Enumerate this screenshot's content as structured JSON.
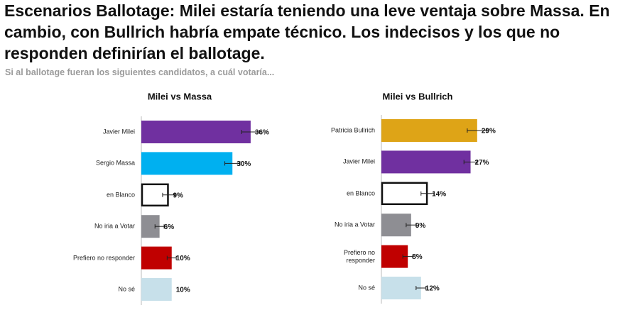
{
  "title": "Escenarios Ballotage: Milei estaría teniendo una leve ventaja sobre Massa. En cambio, con Bullrich habría empate técnico. Los indecisos y los que no responden definirían el ballotage.",
  "subtitle": "Si al ballotage fueran los siguientes candidatos, a cuál votaría...",
  "chart_data": [
    {
      "type": "bar",
      "orientation": "horizontal",
      "title": "Milei vs Massa",
      "categories": [
        "Javier Milei",
        "Sergio Massa",
        "en Blanco",
        "No iria a Votar",
        "Prefiero no responder",
        "No sé"
      ],
      "values": [
        36,
        30,
        9,
        6,
        10,
        10
      ],
      "errors": [
        3,
        2.5,
        2,
        1.5,
        1.5,
        0
      ],
      "value_labels": [
        "36%",
        "30%",
        "9%",
        "6%",
        "10%",
        "10%"
      ],
      "colors": [
        "#7030a0",
        "#00b0f0",
        "#ffffff",
        "#8e8e93",
        "#c00000",
        "#c7e0ea"
      ],
      "xlim": [
        0,
        40
      ]
    },
    {
      "type": "bar",
      "orientation": "horizontal",
      "title": "Milei vs Bullrich",
      "categories": [
        "Patricia Bullrich",
        "Javier Milei",
        "en Blanco",
        "No iria a Votar",
        "Prefiero no responder",
        "No sé"
      ],
      "values": [
        29,
        27,
        14,
        9,
        8,
        12
      ],
      "errors": [
        3,
        2,
        2,
        1.5,
        1.5,
        1.5
      ],
      "value_labels": [
        "29%",
        "27%",
        "14%",
        "9%",
        "8%",
        "12%"
      ],
      "colors": [
        "#dea417",
        "#7030a0",
        "#ffffff",
        "#8e8e93",
        "#c00000",
        "#c7e0ea"
      ],
      "xlim": [
        0,
        40
      ]
    }
  ]
}
